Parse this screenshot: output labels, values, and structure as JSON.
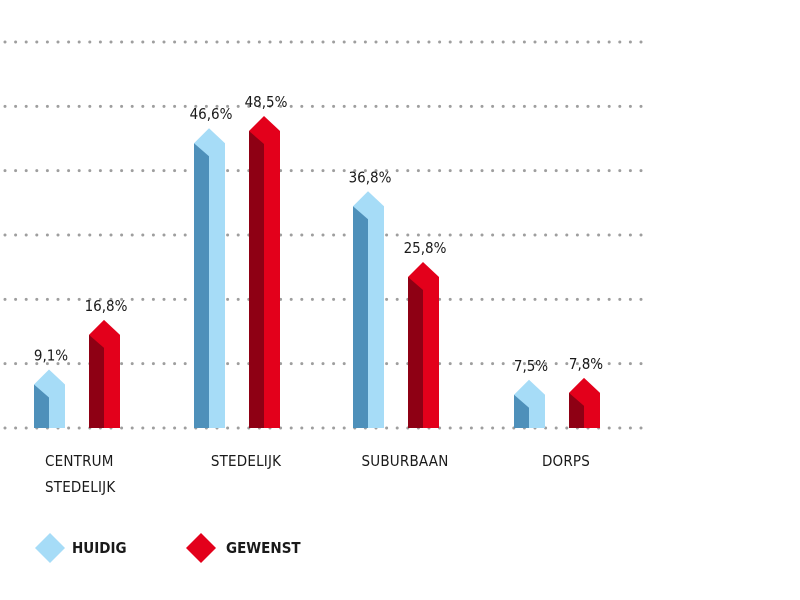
{
  "chart_data": {
    "type": "bar",
    "categories": [
      "CENTRUM STEDELIJK",
      "STEDELIJK",
      "SUBURBAAN",
      "DORPS"
    ],
    "category_lines": [
      [
        "CENTRUM",
        "STEDELIJK"
      ],
      [
        "STEDELIJK"
      ],
      [
        "SUBURBAAN"
      ],
      [
        "DORPS"
      ]
    ],
    "series": [
      {
        "name": "HUIDIG",
        "values": [
          9.1,
          46.6,
          36.8,
          7.5
        ],
        "labels": [
          "9,1%",
          "46,6%",
          "36,8%",
          "7,5%"
        ],
        "color_front": "#a6dcf7",
        "color_side": "#4e90ba"
      },
      {
        "name": "GEWENST",
        "values": [
          16.8,
          48.5,
          25.8,
          7.8
        ],
        "labels": [
          "16,8%",
          "48,5%",
          "25,8%",
          "7,8%"
        ],
        "color_front": "#e3001b",
        "color_side": "#8e0014"
      }
    ],
    "ylim": [
      0,
      60
    ],
    "grid": true,
    "grid_style": "dotted",
    "legend_position": "bottom-left",
    "title": "",
    "xlabel": "",
    "ylabel": ""
  }
}
